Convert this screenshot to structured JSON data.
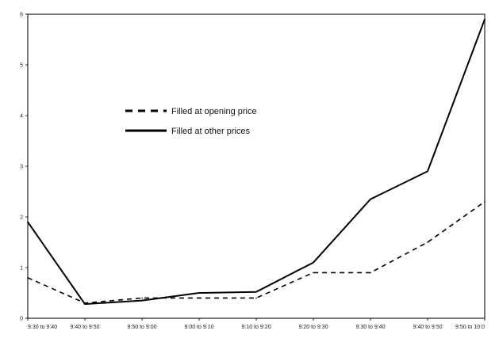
{
  "chart_data": {
    "type": "line",
    "title": "",
    "xlabel": "",
    "ylabel": "",
    "categories": [
      "9:30 to 9:40",
      "9:40 to 9:50",
      "9:50 to 9:00",
      "9:00 to 9:10",
      "9:10 to 9:20",
      "9:20 to 9:30",
      "9:30 to 9:40",
      "9:40 to 9:50",
      "9:50 to 10:0"
    ],
    "ylim": [
      0,
      6
    ],
    "yticks": [
      "0",
      "1",
      "2",
      "3",
      "4",
      "5",
      "6"
    ],
    "grid": false,
    "legend_position": "upper-left",
    "series": [
      {
        "name": "Filled at opening price",
        "style": "dashed",
        "color": "#000000",
        "values": [
          0.8,
          0.3,
          0.4,
          0.4,
          0.4,
          0.9,
          0.9,
          1.5,
          2.3
        ]
      },
      {
        "name": "Filled at other prices",
        "style": "solid",
        "color": "#000000",
        "values": [
          1.9,
          0.28,
          0.35,
          0.5,
          0.52,
          1.1,
          2.35,
          2.9,
          5.9
        ]
      }
    ]
  }
}
